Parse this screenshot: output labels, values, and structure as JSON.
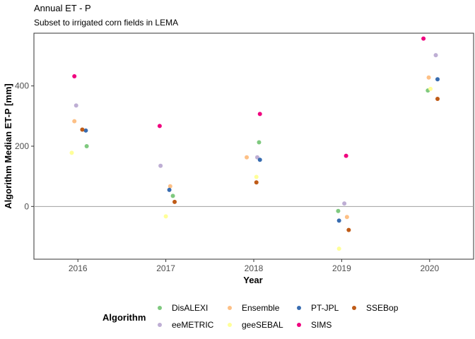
{
  "chart_data": {
    "type": "scatter",
    "title": "Annual ET - P",
    "subtitle": "Subset to irrigated corn fields in LEMA",
    "xlabel": "Year",
    "ylabel": "Algorithm Median ET-P [mm]",
    "categories": [
      "2016",
      "2017",
      "2018",
      "2019",
      "2020"
    ],
    "yticks": [
      0,
      200,
      400
    ],
    "ylim": [
      -175,
      575
    ],
    "hline": 0,
    "grid": false,
    "legend": {
      "title": "Algorithm",
      "position": "bottom"
    },
    "series": [
      {
        "name": "DisALEXI",
        "color": "#7fc97f",
        "points": [
          {
            "x": "2016",
            "y": 200,
            "offset": 0.1
          },
          {
            "x": "2017",
            "y": 35,
            "offset": 0.08
          },
          {
            "x": "2018",
            "y": 213,
            "offset": 0.06
          },
          {
            "x": "2019",
            "y": -15,
            "offset": -0.04
          },
          {
            "x": "2020",
            "y": 385,
            "offset": -0.02
          }
        ]
      },
      {
        "name": "eeMETRIC",
        "color": "#beaed4",
        "points": [
          {
            "x": "2016",
            "y": 335,
            "offset": -0.02
          },
          {
            "x": "2017",
            "y": 135,
            "offset": -0.06
          },
          {
            "x": "2018",
            "y": 163,
            "offset": 0.04
          },
          {
            "x": "2019",
            "y": 10,
            "offset": 0.03
          },
          {
            "x": "2020",
            "y": 502,
            "offset": 0.07
          }
        ]
      },
      {
        "name": "Ensemble",
        "color": "#fdc086",
        "points": [
          {
            "x": "2016",
            "y": 283,
            "offset": -0.04
          },
          {
            "x": "2017",
            "y": 67,
            "offset": 0.05
          },
          {
            "x": "2018",
            "y": 163,
            "offset": -0.08
          },
          {
            "x": "2019",
            "y": -35,
            "offset": 0.06
          },
          {
            "x": "2020",
            "y": 428,
            "offset": -0.01
          }
        ]
      },
      {
        "name": "geeSEBAL",
        "color": "#ffff99",
        "points": [
          {
            "x": "2016",
            "y": 178,
            "offset": -0.07
          },
          {
            "x": "2017",
            "y": -33,
            "offset": 0.0
          },
          {
            "x": "2018",
            "y": 98,
            "offset": 0.03
          },
          {
            "x": "2019",
            "y": -140,
            "offset": -0.03
          },
          {
            "x": "2020",
            "y": 390,
            "offset": 0.01
          }
        ]
      },
      {
        "name": "PT-JPL",
        "color": "#386cb0",
        "points": [
          {
            "x": "2016",
            "y": 252,
            "offset": 0.09
          },
          {
            "x": "2017",
            "y": 55,
            "offset": 0.04
          },
          {
            "x": "2018",
            "y": 155,
            "offset": 0.07
          },
          {
            "x": "2019",
            "y": -47,
            "offset": -0.03
          },
          {
            "x": "2020",
            "y": 422,
            "offset": 0.09
          }
        ]
      },
      {
        "name": "SIMS",
        "color": "#f0027f",
        "points": [
          {
            "x": "2016",
            "y": 432,
            "offset": -0.04
          },
          {
            "x": "2017",
            "y": 267,
            "offset": -0.07
          },
          {
            "x": "2018",
            "y": 307,
            "offset": 0.07
          },
          {
            "x": "2019",
            "y": 168,
            "offset": 0.05
          },
          {
            "x": "2020",
            "y": 557,
            "offset": -0.07
          }
        ]
      },
      {
        "name": "SSEBop",
        "color": "#bf5b17",
        "points": [
          {
            "x": "2016",
            "y": 255,
            "offset": 0.05
          },
          {
            "x": "2017",
            "y": 15,
            "offset": 0.1
          },
          {
            "x": "2018",
            "y": 80,
            "offset": 0.03
          },
          {
            "x": "2019",
            "y": -78,
            "offset": 0.08
          },
          {
            "x": "2020",
            "y": 357,
            "offset": 0.09
          }
        ]
      }
    ]
  }
}
